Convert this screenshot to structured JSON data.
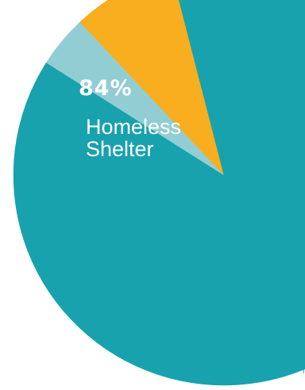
{
  "chart_data": {
    "type": "pie",
    "slices": [
      {
        "label": "Homeless Shelter",
        "value": 84,
        "color": "#17a2ad"
      },
      {
        "label": "",
        "value": 4,
        "color": "#93cdd4"
      },
      {
        "label": "",
        "value": 8,
        "color": "#f8ae1e"
      },
      {
        "label": "",
        "value": 4,
        "color": "#17a2ad"
      }
    ],
    "annotation": {
      "percent_text": "84%",
      "label_text": "Homeless\nShelter"
    }
  }
}
